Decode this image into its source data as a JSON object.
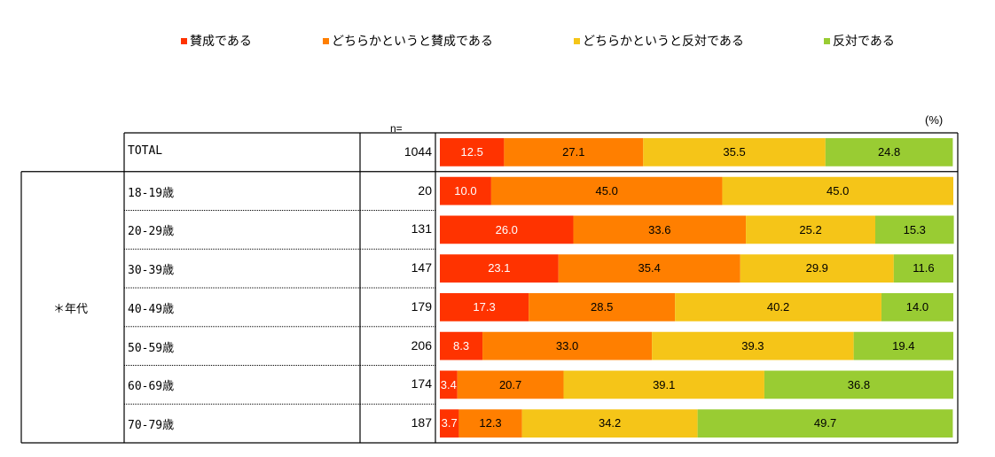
{
  "legend": [
    {
      "label": "賛成である",
      "color": "#ff3300"
    },
    {
      "label": "どちらかというと賛成である",
      "color": "#ff7f00"
    },
    {
      "label": "どちらかというと反対である",
      "color": "#f5c518"
    },
    {
      "label": "反対である",
      "color": "#99cc33"
    }
  ],
  "unit_label": "(%)",
  "n_header": "n=",
  "group_label": "＊年代",
  "chart_data": {
    "type": "bar",
    "stacked": true,
    "orientation": "horizontal",
    "xlim": [
      0,
      100
    ],
    "unit": "%",
    "categories": [
      "TOTAL",
      "18-19歳",
      "20-29歳",
      "30-39歳",
      "40-49歳",
      "50-59歳",
      "60-69歳",
      "70-79歳"
    ],
    "n": [
      "1044",
      "20",
      "131",
      "147",
      "179",
      "206",
      "174",
      "187"
    ],
    "series": [
      {
        "name": "賛成である",
        "color": "#ff3300",
        "text_color": "#ffffff",
        "values": [
          12.5,
          10.0,
          26.0,
          23.1,
          17.3,
          8.3,
          3.4,
          3.7
        ]
      },
      {
        "name": "どちらかというと賛成である",
        "color": "#ff7f00",
        "text_color": "#000000",
        "values": [
          27.1,
          45.0,
          33.6,
          35.4,
          28.5,
          33.0,
          20.7,
          12.3
        ]
      },
      {
        "name": "どちらかというと反対である",
        "color": "#f5c518",
        "text_color": "#000000",
        "values": [
          35.5,
          45.0,
          25.2,
          29.9,
          40.2,
          39.3,
          39.1,
          34.2
        ]
      },
      {
        "name": "反対である",
        "color": "#99cc33",
        "text_color": "#000000",
        "values": [
          24.8,
          0.0,
          15.3,
          11.6,
          14.0,
          19.4,
          36.8,
          49.7
        ]
      }
    ],
    "labels": [
      [
        "12.5",
        "27.1",
        "35.5",
        "24.8"
      ],
      [
        "10.0",
        "45.0",
        "45.0",
        ""
      ],
      [
        "26.0",
        "33.6",
        "25.2",
        "15.3"
      ],
      [
        "23.1",
        "35.4",
        "29.9",
        "11.6"
      ],
      [
        "17.3",
        "28.5",
        "40.2",
        "14.0"
      ],
      [
        "8.3",
        "33.0",
        "39.3",
        "19.4"
      ],
      [
        "3.4",
        "20.7",
        "39.1",
        "36.8"
      ],
      [
        "3.7",
        "12.3",
        "34.2",
        "49.7"
      ]
    ]
  }
}
